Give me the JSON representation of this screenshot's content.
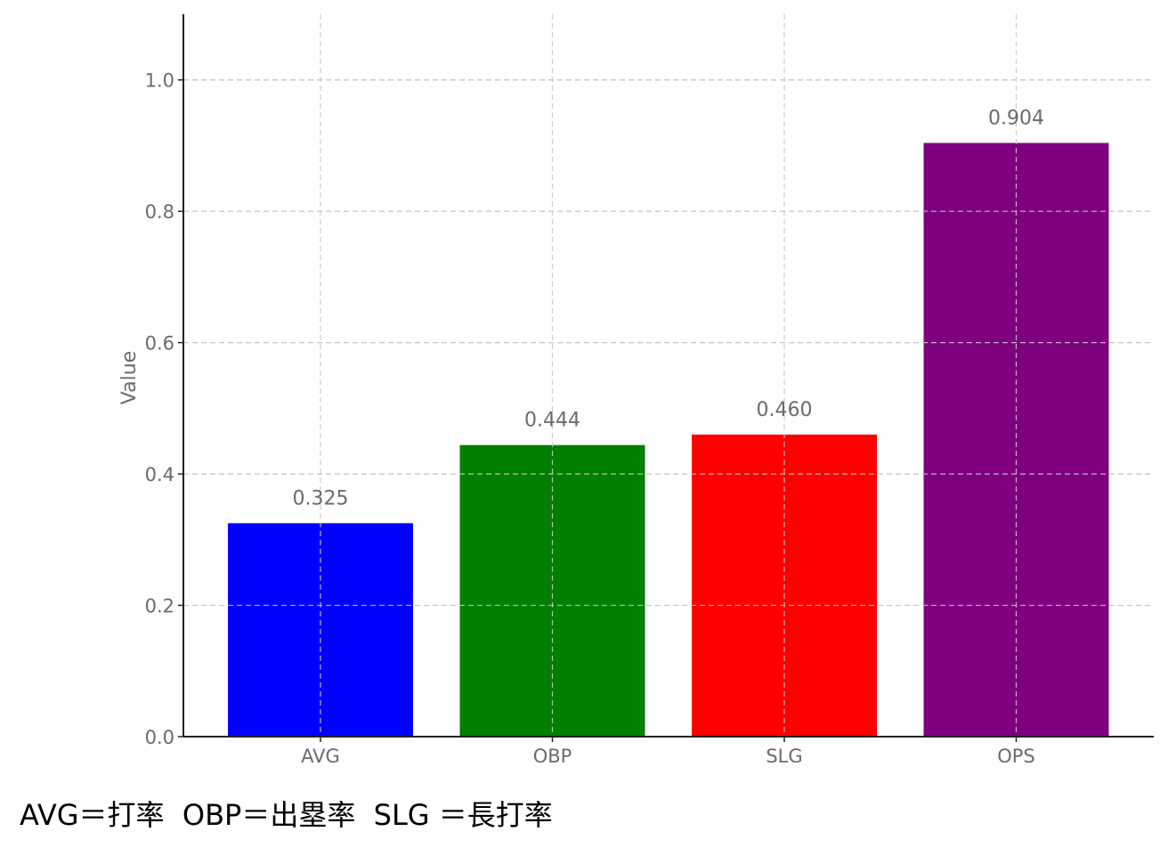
{
  "chart_data": {
    "type": "bar",
    "categories": [
      "AVG",
      "OBP",
      "SLG",
      "OPS"
    ],
    "values": [
      0.325,
      0.444,
      0.46,
      0.904
    ],
    "value_labels": [
      "0.325",
      "0.444",
      "0.460",
      "0.904"
    ],
    "colors": [
      "#0000ff",
      "#007f00",
      "#ff0000",
      "#7f007f"
    ],
    "title": "",
    "xlabel": "",
    "ylabel": "Value",
    "ylim": [
      0,
      1.1
    ],
    "yticks": [
      0.0,
      0.2,
      0.4,
      0.6,
      0.8,
      1.0
    ],
    "ytick_labels": [
      "0.0",
      "0.2",
      "0.4",
      "0.6",
      "0.8",
      "1.0"
    ],
    "grid": true,
    "grid_style": "dashed"
  },
  "footnote": "AVG＝打率  OBP＝出塁率  SLG ＝長打率"
}
